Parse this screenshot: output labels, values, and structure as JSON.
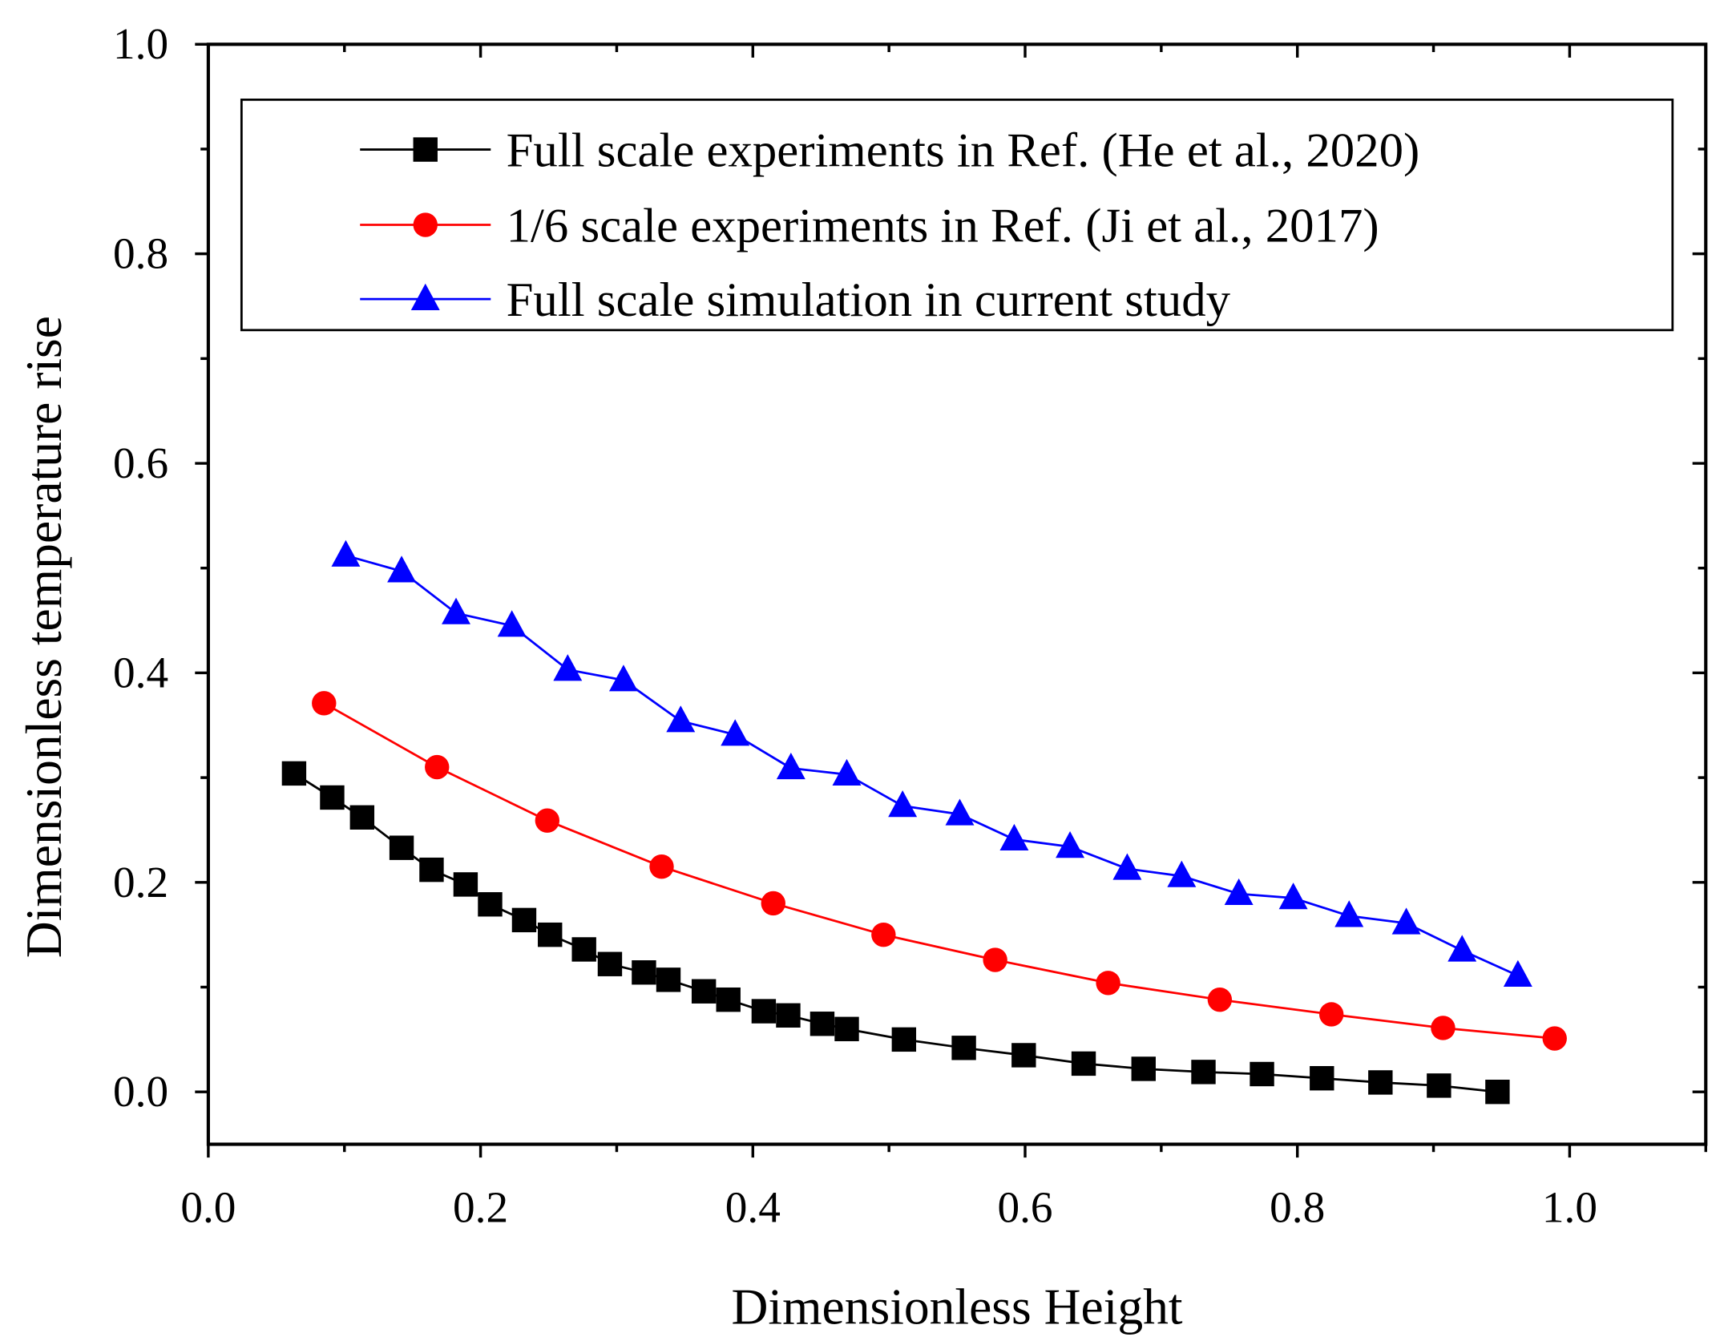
{
  "chart_data": {
    "type": "line",
    "title": "",
    "xlabel": "Dimensionless Height",
    "ylabel": "Dimensionless temperature rise",
    "xlim": [
      0.0,
      1.1
    ],
    "ylim": [
      -0.05,
      1.0
    ],
    "xticks": [
      "0.0",
      "0.2",
      "0.4",
      "0.6",
      "0.8",
      "1.0"
    ],
    "yticks": [
      "0.0",
      "0.2",
      "0.4",
      "0.6",
      "0.8",
      "1.0"
    ],
    "grid": false,
    "legend_position": "top",
    "series": [
      {
        "name": "Full scale experiments in Ref. (He et al., 2020)",
        "color": "#000000",
        "marker": "square",
        "x": [
          0.063,
          0.091,
          0.113,
          0.142,
          0.164,
          0.189,
          0.207,
          0.232,
          0.251,
          0.276,
          0.295,
          0.32,
          0.338,
          0.364,
          0.382,
          0.408,
          0.426,
          0.451,
          0.469,
          0.511,
          0.555,
          0.599,
          0.643,
          0.687,
          0.731,
          0.774,
          0.818,
          0.861,
          0.904,
          0.947
        ],
        "y": [
          0.304,
          0.281,
          0.262,
          0.233,
          0.212,
          0.198,
          0.179,
          0.164,
          0.15,
          0.136,
          0.122,
          0.114,
          0.107,
          0.096,
          0.088,
          0.077,
          0.073,
          0.065,
          0.06,
          0.05,
          0.042,
          0.035,
          0.027,
          0.022,
          0.019,
          0.017,
          0.013,
          0.009,
          0.006,
          0.0
        ]
      },
      {
        "name": "1/6 scale experiments in Ref. (Ji et al., 2017)",
        "color": "#ff0000",
        "marker": "circle",
        "x": [
          0.085,
          0.168,
          0.249,
          0.333,
          0.415,
          0.496,
          0.578,
          0.661,
          0.743,
          0.825,
          0.907,
          0.989
        ],
        "y": [
          0.371,
          0.31,
          0.259,
          0.215,
          0.18,
          0.15,
          0.126,
          0.104,
          0.088,
          0.074,
          0.061,
          0.051
        ]
      },
      {
        "name": "Full scale simulation in current study",
        "color": "#0000ff",
        "marker": "triangle",
        "x": [
          0.101,
          0.142,
          0.182,
          0.223,
          0.264,
          0.305,
          0.347,
          0.387,
          0.428,
          0.469,
          0.51,
          0.552,
          0.592,
          0.633,
          0.675,
          0.715,
          0.757,
          0.797,
          0.838,
          0.88,
          0.921,
          0.962
        ],
        "y": [
          0.512,
          0.497,
          0.457,
          0.445,
          0.403,
          0.393,
          0.354,
          0.341,
          0.309,
          0.303,
          0.273,
          0.265,
          0.241,
          0.234,
          0.213,
          0.206,
          0.189,
          0.185,
          0.168,
          0.161,
          0.135,
          0.111
        ]
      }
    ]
  }
}
